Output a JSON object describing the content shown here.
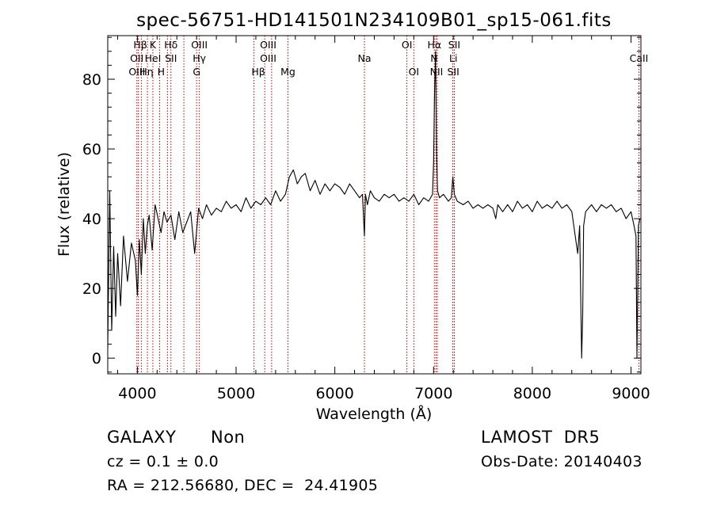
{
  "chart_data": {
    "type": "line",
    "title": "spec-56751-HD141501N234109B01_sp15-061.fits",
    "xlabel": "Wavelength (Å)",
    "ylabel": "Flux (relative)",
    "xlim": [
      3700,
      9100
    ],
    "ylim": [
      -4.5,
      92.5
    ],
    "xticks": [
      4000,
      5000,
      6000,
      7000,
      8000,
      9000
    ],
    "yticks": [
      0,
      20,
      40,
      60,
      80
    ],
    "series": [
      {
        "color": "#000000",
        "x": [
          3700,
          3720,
          3740,
          3760,
          3780,
          3800,
          3830,
          3860,
          3900,
          3940,
          3980,
          4000,
          4020,
          4040,
          4060,
          4080,
          4100,
          4120,
          4150,
          4180,
          4210,
          4240,
          4270,
          4300,
          4340,
          4380,
          4420,
          4460,
          4500,
          4540,
          4580,
          4620,
          4660,
          4700,
          4750,
          4800,
          4850,
          4900,
          4950,
          5000,
          5050,
          5100,
          5150,
          5200,
          5250,
          5300,
          5350,
          5400,
          5450,
          5500,
          5540,
          5580,
          5620,
          5660,
          5700,
          5750,
          5800,
          5850,
          5900,
          5950,
          6000,
          6050,
          6100,
          6150,
          6200,
          6250,
          6280,
          6300,
          6310,
          6330,
          6360,
          6400,
          6450,
          6500,
          6550,
          6600,
          6650,
          6700,
          6750,
          6800,
          6850,
          6900,
          6950,
          6990,
          7000,
          7010,
          7020,
          7030,
          7040,
          7060,
          7100,
          7150,
          7180,
          7195,
          7210,
          7240,
          7300,
          7350,
          7400,
          7450,
          7500,
          7550,
          7600,
          7630,
          7650,
          7700,
          7750,
          7800,
          7850,
          7900,
          7950,
          8000,
          8050,
          8100,
          8150,
          8200,
          8250,
          8300,
          8350,
          8400,
          8430,
          8460,
          8480,
          8490,
          8500,
          8510,
          8520,
          8540,
          8570,
          8600,
          8650,
          8700,
          8750,
          8800,
          8850,
          8900,
          8950,
          9000,
          9030,
          9050,
          9060,
          9075,
          9090
        ],
        "values": [
          3,
          48,
          8,
          32,
          12,
          30,
          15,
          35,
          22,
          33,
          28,
          18,
          34,
          24,
          40,
          30,
          38,
          41,
          31,
          44,
          40,
          36,
          42,
          39,
          41,
          34,
          42,
          36,
          39,
          42,
          30,
          43,
          40,
          44,
          41,
          43,
          42,
          45,
          43,
          44,
          42,
          46,
          43,
          45,
          44,
          46,
          44,
          48,
          45,
          47,
          52,
          54,
          50,
          52,
          53,
          48,
          51,
          47,
          50,
          48,
          50,
          49,
          47,
          50,
          48,
          46,
          47,
          35,
          47,
          44,
          48,
          46,
          45,
          47,
          46,
          47,
          45,
          46,
          45,
          47,
          44,
          46,
          45,
          47,
          56,
          76,
          88,
          60,
          48,
          46,
          47,
          45,
          46,
          52,
          47,
          45,
          44,
          45,
          43,
          44,
          43,
          44,
          43,
          40,
          44,
          42,
          44,
          42,
          45,
          43,
          44,
          42,
          45,
          43,
          44,
          43,
          45,
          43,
          44,
          42,
          36,
          30,
          38,
          18,
          0,
          12,
          38,
          42,
          43,
          44,
          42,
          44,
          43,
          44,
          42,
          43,
          40,
          42,
          38,
          35,
          0,
          38,
          40
        ]
      }
    ],
    "line_marks": [
      {
        "x": 3995,
        "label": ""
      },
      {
        "x": 4010,
        "label": ""
      },
      {
        "x": 4040,
        "label": ""
      },
      {
        "x": 4102,
        "label": ""
      },
      {
        "x": 4157,
        "label": ""
      },
      {
        "x": 4226,
        "label": ""
      },
      {
        "x": 4305,
        "label": ""
      },
      {
        "x": 4340,
        "label": ""
      },
      {
        "x": 4471,
        "label": ""
      },
      {
        "x": 4600,
        "label": ""
      },
      {
        "x": 4628,
        "label": ""
      },
      {
        "x": 5180,
        "label": ""
      },
      {
        "x": 5290,
        "label": ""
      },
      {
        "x": 5360,
        "label": ""
      },
      {
        "x": 5525,
        "label": ""
      },
      {
        "x": 6300,
        "label": ""
      },
      {
        "x": 6730,
        "label": ""
      },
      {
        "x": 6800,
        "label": ""
      },
      {
        "x": 7008,
        "label": ""
      },
      {
        "x": 7025,
        "label": ""
      },
      {
        "x": 7038,
        "label": ""
      },
      {
        "x": 7195,
        "label": ""
      },
      {
        "x": 7210,
        "label": ""
      },
      {
        "x": 9080,
        "label": ""
      }
    ],
    "line_labels": [
      {
        "text": "Hβ",
        "x": 4030,
        "row": 0
      },
      {
        "text": "K",
        "x": 4157,
        "row": 0
      },
      {
        "text": "Hδ",
        "x": 4340,
        "row": 0
      },
      {
        "text": "OIII",
        "x": 4628,
        "row": 0
      },
      {
        "text": "OIII",
        "x": 5325,
        "row": 0
      },
      {
        "text": "OI",
        "x": 6730,
        "row": 0
      },
      {
        "text": "Hα",
        "x": 7008,
        "row": 0
      },
      {
        "text": "SII",
        "x": 7210,
        "row": 0
      },
      {
        "text": "OII",
        "x": 3995,
        "row": 1
      },
      {
        "text": "HeI",
        "x": 4157,
        "row": 1
      },
      {
        "text": "SII",
        "x": 4340,
        "row": 1
      },
      {
        "text": "Hγ",
        "x": 4628,
        "row": 1
      },
      {
        "text": "OIII",
        "x": 5325,
        "row": 1
      },
      {
        "text": "Na",
        "x": 6300,
        "row": 1
      },
      {
        "text": "N",
        "x": 7005,
        "row": 1
      },
      {
        "text": "Li",
        "x": 7200,
        "row": 1
      },
      {
        "text": "CaII",
        "x": 9080,
        "row": 1
      },
      {
        "text": "OIII",
        "x": 3995,
        "row": 2
      },
      {
        "text": "Hη",
        "x": 4093,
        "row": 2
      },
      {
        "text": "H",
        "x": 4240,
        "row": 2
      },
      {
        "text": "G",
        "x": 4600,
        "row": 2
      },
      {
        "text": "Hβ",
        "x": 5225,
        "row": 2
      },
      {
        "text": "Mg",
        "x": 5525,
        "row": 2
      },
      {
        "text": "OI",
        "x": 6800,
        "row": 2
      },
      {
        "text": "NII",
        "x": 7030,
        "row": 2
      },
      {
        "text": "SII",
        "x": 7200,
        "row": 2
      }
    ]
  },
  "footer": {
    "object_class": "GALAXY",
    "object_subclass": "Non",
    "cz": "cz = 0.1 ± 0.0",
    "coords": "RA = 212.56680, DEC =  24.41905",
    "survey": "LAMOST  DR5",
    "obs_date": "Obs-Date: 20140403"
  },
  "colors": {
    "spectrum": "#000000",
    "line_marker": "#c00000",
    "text": "#000000"
  }
}
